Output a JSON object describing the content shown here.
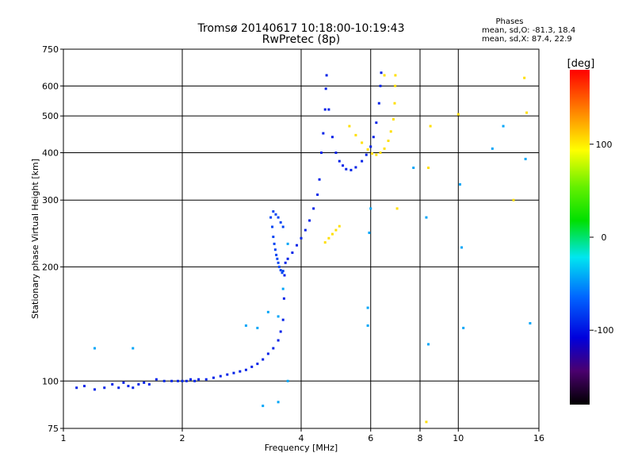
{
  "header": {
    "title": "Tromsø 20140617 10:18:00-10:19:43",
    "subtitle": "RwPretec (8p)",
    "phases_label": "Phases",
    "phases_o": "mean, sd,O: -81.3, 18.4",
    "phases_x": "mean, sd,X:  87.4, 22.9"
  },
  "colorbar": {
    "unit": "[deg]",
    "ticks": [
      {
        "value": 100,
        "label": "100"
      },
      {
        "value": 0,
        "label": "0"
      },
      {
        "value": -100,
        "label": "-100"
      }
    ],
    "range": [
      -180,
      180
    ]
  },
  "chart_data": {
    "type": "scatter",
    "xlabel": "Frequency [MHz]",
    "ylabel": "Stationary phase Virtual Height [km]",
    "xscale": "log",
    "yscale": "log",
    "xlim": [
      1,
      16
    ],
    "ylim": [
      75,
      750
    ],
    "grid": true,
    "xticks": [
      {
        "value": 1,
        "label": "1"
      },
      {
        "value": 2,
        "label": "2"
      },
      {
        "value": 4,
        "label": "4"
      },
      {
        "value": 6,
        "label": "6"
      },
      {
        "value": 8,
        "label": "8"
      },
      {
        "value": 10,
        "label": "10"
      },
      {
        "value": 16,
        "label": "16"
      }
    ],
    "yticks": [
      {
        "value": 75,
        "label": "75"
      },
      {
        "value": 100,
        "label": "100"
      },
      {
        "value": 200,
        "label": "200"
      },
      {
        "value": 300,
        "label": "300"
      },
      {
        "value": 400,
        "label": "400"
      },
      {
        "value": 500,
        "label": "500"
      },
      {
        "value": 600,
        "label": "600"
      },
      {
        "value": 750,
        "label": "750"
      }
    ],
    "series": [
      {
        "trace": "o-mode-low",
        "phase": -100,
        "points": [
          [
            1.08,
            96
          ],
          [
            1.13,
            97
          ],
          [
            1.2,
            95
          ],
          [
            1.27,
            96
          ],
          [
            1.33,
            98
          ],
          [
            1.38,
            96
          ],
          [
            1.42,
            99
          ],
          [
            1.46,
            97
          ],
          [
            1.5,
            96
          ],
          [
            1.55,
            98
          ],
          [
            1.6,
            99
          ],
          [
            1.65,
            98
          ],
          [
            1.72,
            101
          ],
          [
            1.8,
            100
          ],
          [
            1.88,
            100
          ],
          [
            1.95,
            100
          ],
          [
            2.0,
            100
          ],
          [
            2.05,
            100
          ],
          [
            2.1,
            101
          ],
          [
            2.15,
            100
          ],
          [
            2.2,
            101
          ],
          [
            2.3,
            101
          ],
          [
            2.4,
            102
          ],
          [
            2.5,
            103
          ],
          [
            2.6,
            104
          ],
          [
            2.7,
            105
          ],
          [
            2.8,
            106
          ],
          [
            2.9,
            107
          ],
          [
            3.0,
            109
          ],
          [
            3.1,
            111
          ],
          [
            3.2,
            114
          ],
          [
            3.3,
            118
          ],
          [
            3.4,
            122
          ],
          [
            3.5,
            128
          ],
          [
            3.55,
            135
          ],
          [
            3.6,
            145
          ],
          [
            3.62,
            165
          ],
          [
            3.63,
            190
          ],
          [
            3.65,
            205
          ],
          [
            3.7,
            210
          ],
          [
            3.8,
            218
          ],
          [
            3.9,
            228
          ],
          [
            4.0,
            238
          ],
          [
            4.1,
            250
          ],
          [
            4.2,
            265
          ],
          [
            4.3,
            285
          ],
          [
            4.4,
            310
          ],
          [
            4.45,
            340
          ],
          [
            4.5,
            400
          ],
          [
            4.55,
            450
          ],
          [
            4.6,
            520
          ],
          [
            4.62,
            590
          ],
          [
            4.64,
            640
          ],
          [
            4.7,
            520
          ],
          [
            4.8,
            440
          ],
          [
            4.9,
            400
          ],
          [
            5.0,
            380
          ],
          [
            5.1,
            370
          ],
          [
            5.2,
            362
          ],
          [
            5.35,
            360
          ],
          [
            5.5,
            366
          ],
          [
            5.7,
            380
          ],
          [
            5.85,
            395
          ],
          [
            6.0,
            415
          ],
          [
            6.1,
            440
          ],
          [
            6.2,
            480
          ],
          [
            6.3,
            540
          ],
          [
            6.35,
            600
          ],
          [
            6.38,
            650
          ]
        ]
      },
      {
        "trace": "o-mode-cusp",
        "phase": -90,
        "points": [
          [
            3.35,
            270
          ],
          [
            3.38,
            255
          ],
          [
            3.4,
            240
          ],
          [
            3.42,
            230
          ],
          [
            3.44,
            222
          ],
          [
            3.46,
            215
          ],
          [
            3.48,
            210
          ],
          [
            3.5,
            205
          ],
          [
            3.52,
            200
          ],
          [
            3.55,
            196
          ],
          [
            3.58,
            193
          ],
          [
            3.6,
            195
          ],
          [
            3.4,
            280
          ],
          [
            3.45,
            275
          ],
          [
            3.5,
            270
          ],
          [
            3.55,
            262
          ],
          [
            3.6,
            255
          ]
        ]
      },
      {
        "trace": "x-mode",
        "phase": 100,
        "points": [
          [
            5.3,
            470
          ],
          [
            5.5,
            445
          ],
          [
            5.7,
            425
          ],
          [
            5.9,
            408
          ],
          [
            6.05,
            398
          ],
          [
            6.2,
            395
          ],
          [
            6.35,
            400
          ],
          [
            6.5,
            410
          ],
          [
            6.65,
            430
          ],
          [
            6.75,
            455
          ],
          [
            6.85,
            490
          ],
          [
            6.9,
            540
          ],
          [
            6.92,
            600
          ],
          [
            6.93,
            640
          ],
          [
            4.6,
            232
          ],
          [
            4.7,
            238
          ],
          [
            4.8,
            244
          ],
          [
            4.9,
            250
          ],
          [
            5.0,
            256
          ]
        ]
      },
      {
        "trace": "scatter-echoes",
        "phase": -60,
        "points": [
          [
            1.2,
            122
          ],
          [
            1.5,
            122
          ],
          [
            2.9,
            140
          ],
          [
            3.1,
            138
          ],
          [
            3.3,
            152
          ],
          [
            3.5,
            148
          ],
          [
            3.6,
            175
          ],
          [
            3.7,
            100
          ],
          [
            3.5,
            88
          ],
          [
            3.2,
            86
          ],
          [
            3.7,
            230
          ],
          [
            5.9,
            156
          ],
          [
            5.9,
            140
          ],
          [
            5.95,
            246
          ],
          [
            6.0,
            285
          ],
          [
            7.7,
            365
          ],
          [
            8.3,
            270
          ],
          [
            8.4,
            125
          ],
          [
            10.1,
            330
          ],
          [
            10.2,
            225
          ],
          [
            10.3,
            138
          ],
          [
            12.2,
            410
          ],
          [
            13.0,
            470
          ],
          [
            14.8,
            385
          ],
          [
            15.2,
            142
          ]
        ]
      },
      {
        "trace": "scatter-warm",
        "phase": 100,
        "points": [
          [
            6.5,
            640
          ],
          [
            7.0,
            285
          ],
          [
            8.5,
            470
          ],
          [
            8.4,
            365
          ],
          [
            10.0,
            505
          ],
          [
            13.8,
            300
          ],
          [
            14.7,
            630
          ],
          [
            14.9,
            510
          ],
          [
            8.3,
            78
          ]
        ]
      }
    ]
  }
}
